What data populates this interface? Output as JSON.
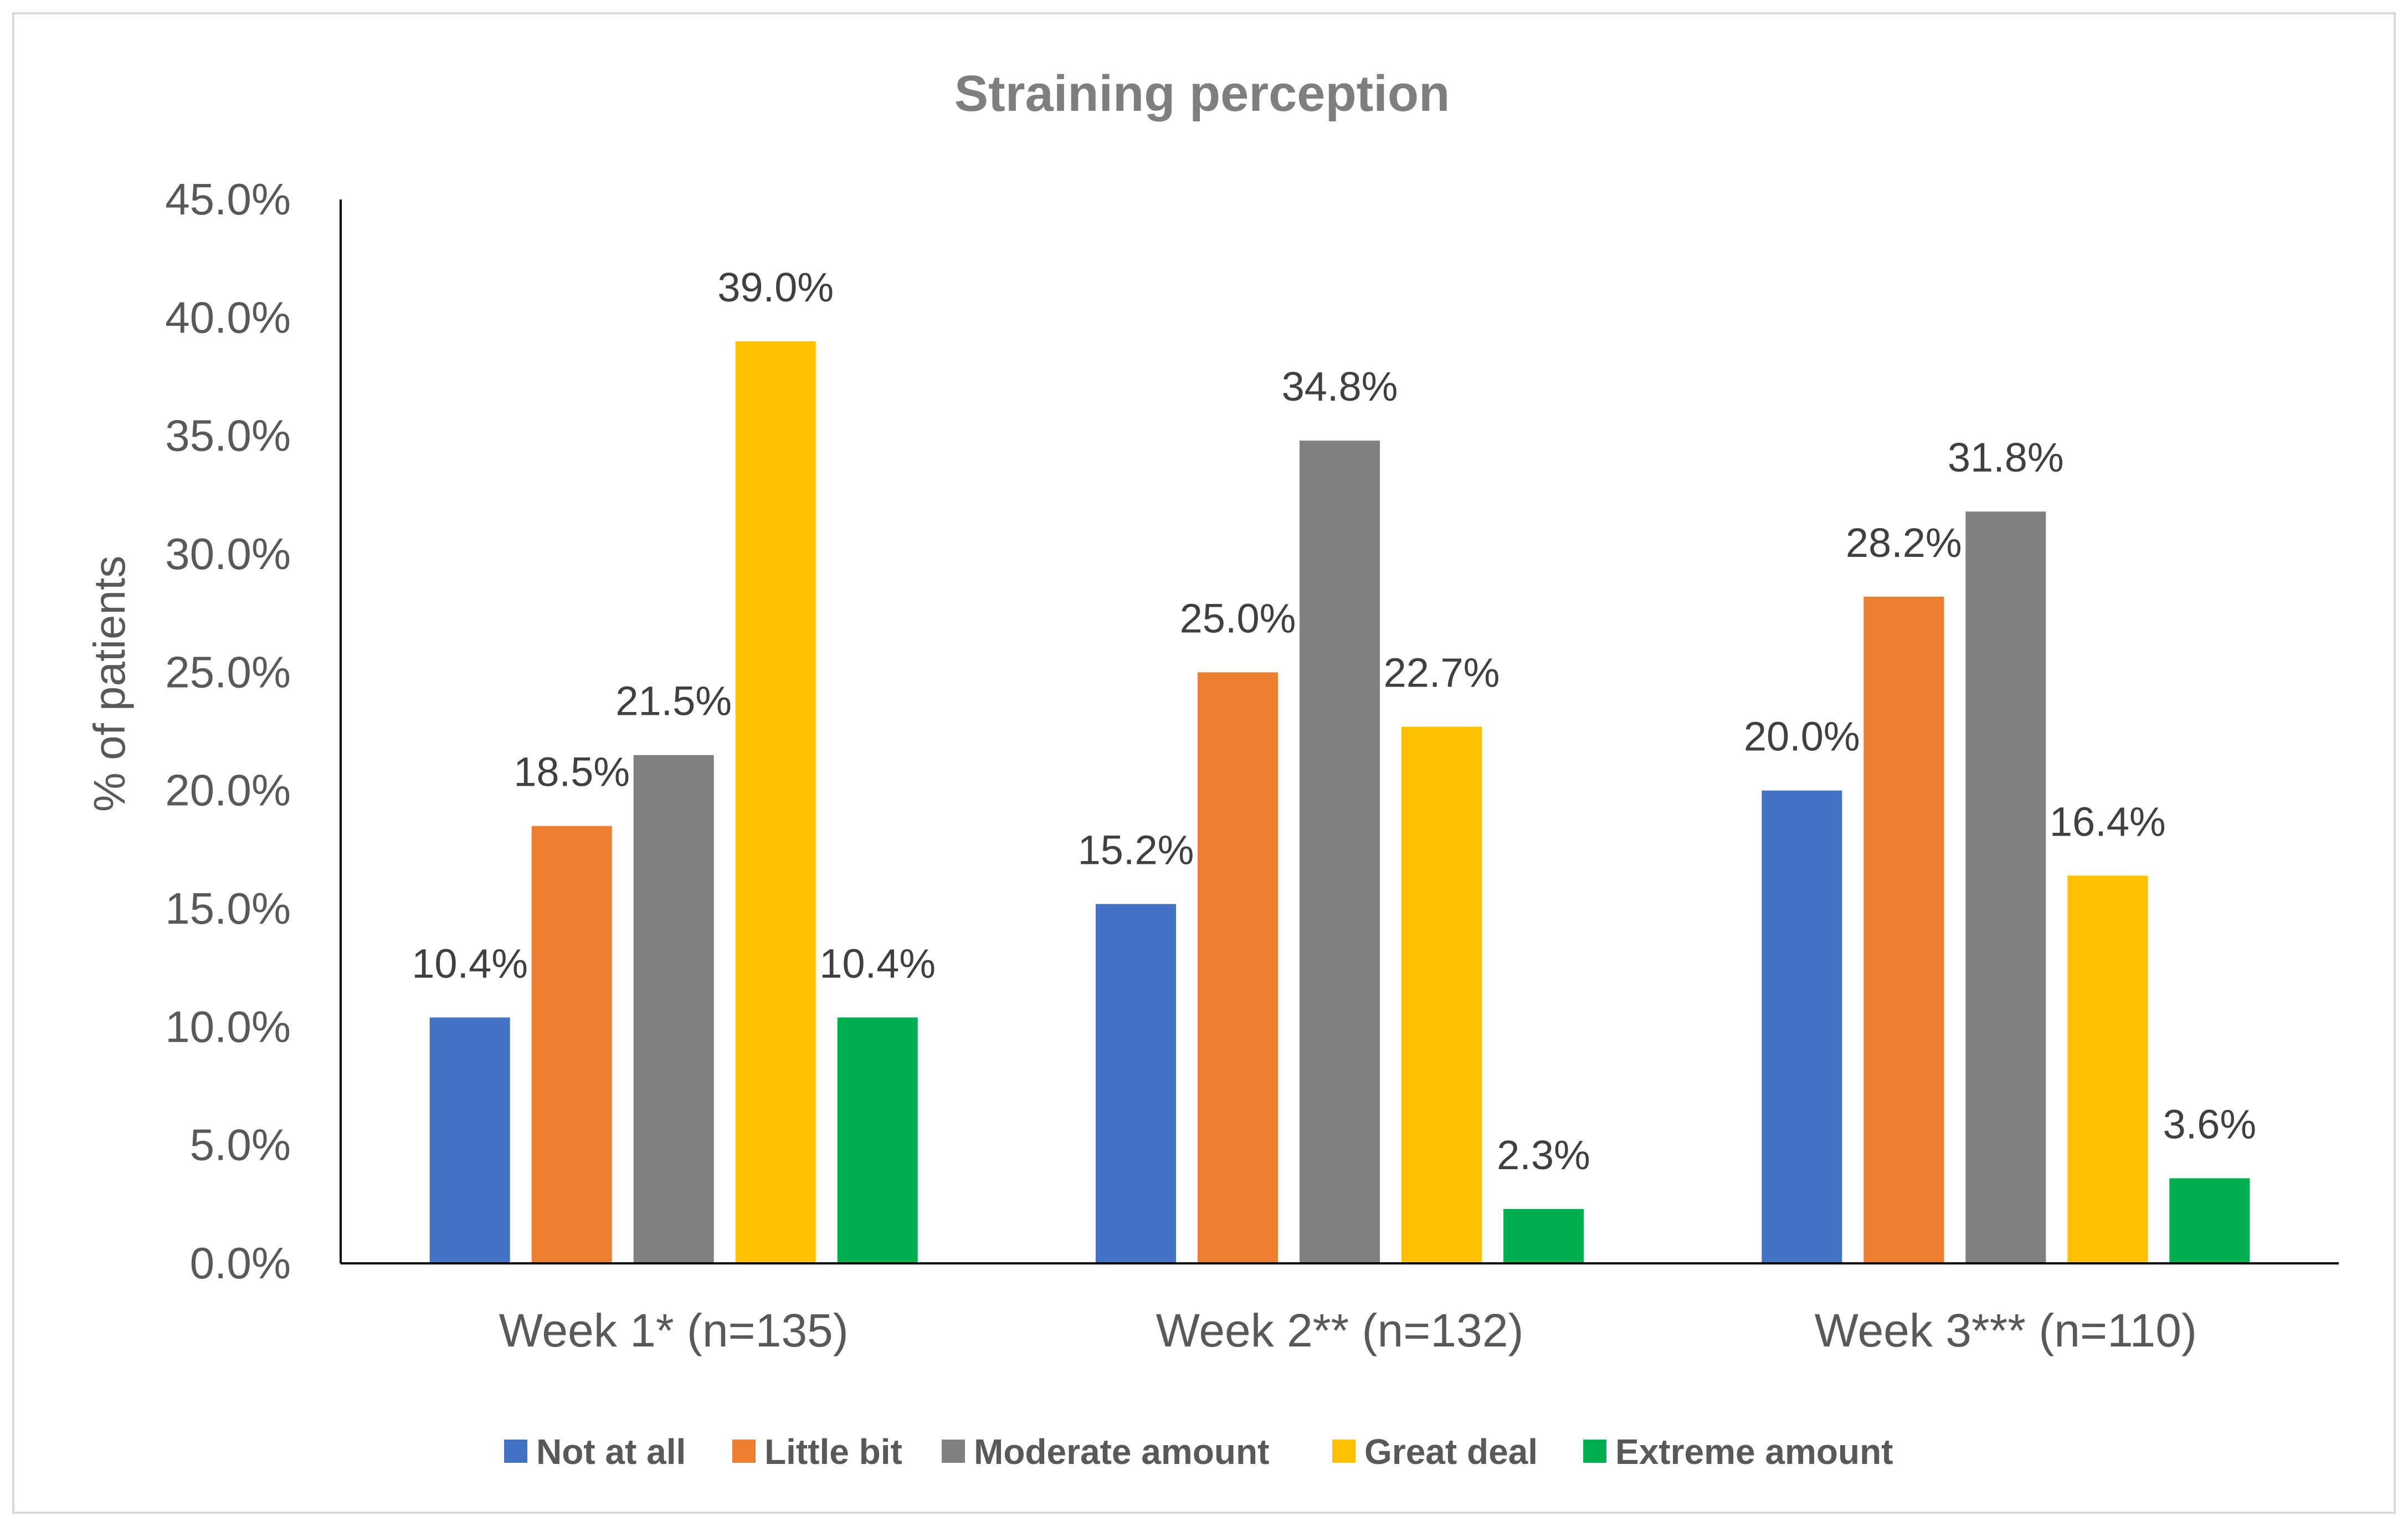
{
  "chart_data": {
    "type": "bar",
    "title": "Straining perception",
    "xlabel": "",
    "ylabel": "% of patients",
    "ylim": [
      0,
      45
    ],
    "yticks": [
      "0.0%",
      "5.0%",
      "10.0%",
      "15.0%",
      "20.0%",
      "25.0%",
      "30.0%",
      "35.0%",
      "40.0%",
      "45.0%"
    ],
    "categories": [
      "Week 1* (n=135)",
      "Week 2** (n=132)",
      "Week 3*** (n=110)"
    ],
    "series": [
      {
        "name": "Not at all",
        "color": "#4472c4",
        "values": [
          10.4,
          15.2,
          20.0
        ],
        "labels": [
          "10.4%",
          "15.2%",
          "20.0%"
        ]
      },
      {
        "name": "Little bit",
        "color": "#ed7d31",
        "values": [
          18.5,
          25.0,
          28.2
        ],
        "labels": [
          "18.5%",
          "25.0%",
          "28.2%"
        ]
      },
      {
        "name": "Moderate amount",
        "color": "#808080",
        "values": [
          21.5,
          34.8,
          31.8
        ],
        "labels": [
          "21.5%",
          "34.8%",
          "31.8%"
        ]
      },
      {
        "name": "Great deal",
        "color": "#ffc000",
        "values": [
          39.0,
          22.7,
          16.4
        ],
        "labels": [
          "39.0%",
          "22.7%",
          "16.4%"
        ]
      },
      {
        "name": "Extreme amount",
        "color": "#00b050",
        "values": [
          10.4,
          2.3,
          3.6
        ],
        "labels": [
          "10.4%",
          "2.3%",
          "3.6%"
        ]
      }
    ],
    "grid": false,
    "legend_position": "bottom"
  }
}
